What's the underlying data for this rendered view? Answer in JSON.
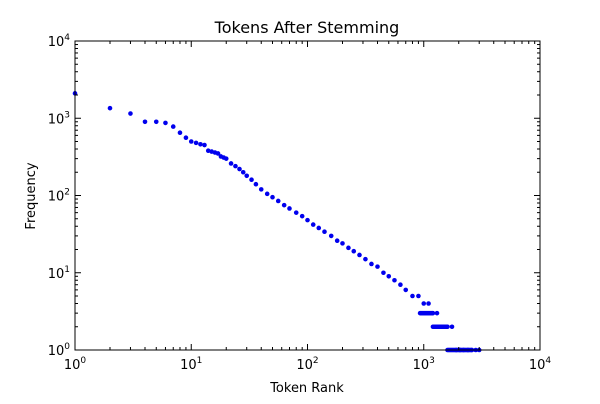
{
  "chart_data": {
    "type": "scatter",
    "title": "Tokens After Stemming",
    "xlabel": "Token Rank",
    "ylabel": "Frequency",
    "xscale": "log",
    "yscale": "log",
    "xlim": [
      1,
      10000
    ],
    "ylim": [
      1,
      10000
    ],
    "x_ticks": [
      {
        "value": 1,
        "base": "10",
        "exp": "0"
      },
      {
        "value": 10,
        "base": "10",
        "exp": "1"
      },
      {
        "value": 100,
        "base": "10",
        "exp": "2"
      },
      {
        "value": 1000,
        "base": "10",
        "exp": "3"
      },
      {
        "value": 10000,
        "base": "10",
        "exp": "4"
      }
    ],
    "y_ticks": [
      {
        "value": 1,
        "base": "10",
        "exp": "0"
      },
      {
        "value": 10,
        "base": "10",
        "exp": "1"
      },
      {
        "value": 100,
        "base": "10",
        "exp": "2"
      },
      {
        "value": 1000,
        "base": "10",
        "exp": "3"
      },
      {
        "value": 10000,
        "base": "10",
        "exp": "4"
      }
    ],
    "grid": false,
    "marker_color": "#0000ee",
    "series": [
      {
        "x": [
          1,
          2,
          3,
          4,
          5,
          6,
          7,
          8,
          9,
          10,
          11,
          12,
          13,
          14,
          15,
          16,
          17,
          18,
          19,
          20,
          22,
          24,
          26,
          28,
          30,
          33,
          36,
          40,
          45,
          50,
          56,
          63,
          70,
          80,
          90,
          100,
          112,
          125,
          140,
          160,
          180,
          200,
          225,
          250,
          280,
          315,
          355,
          400,
          450,
          500,
          560,
          630,
          700,
          800,
          900,
          1000,
          1100,
          1200,
          1300,
          1450,
          1600,
          1750,
          1900,
          2050,
          2200,
          2400,
          2600,
          2800,
          3000
        ],
        "y": [
          2100,
          1350,
          1150,
          900,
          900,
          870,
          780,
          650,
          560,
          500,
          480,
          460,
          450,
          380,
          370,
          360,
          350,
          320,
          310,
          300,
          260,
          240,
          220,
          200,
          180,
          160,
          140,
          120,
          105,
          95,
          85,
          75,
          68,
          60,
          54,
          48,
          42,
          38,
          34,
          30,
          26,
          24,
          21,
          19,
          17,
          15,
          13,
          12,
          10,
          9,
          8,
          7,
          6,
          5,
          5,
          4,
          4,
          3,
          3,
          2,
          2,
          2,
          1,
          1,
          1,
          1,
          1,
          1,
          1
        ]
      }
    ]
  }
}
